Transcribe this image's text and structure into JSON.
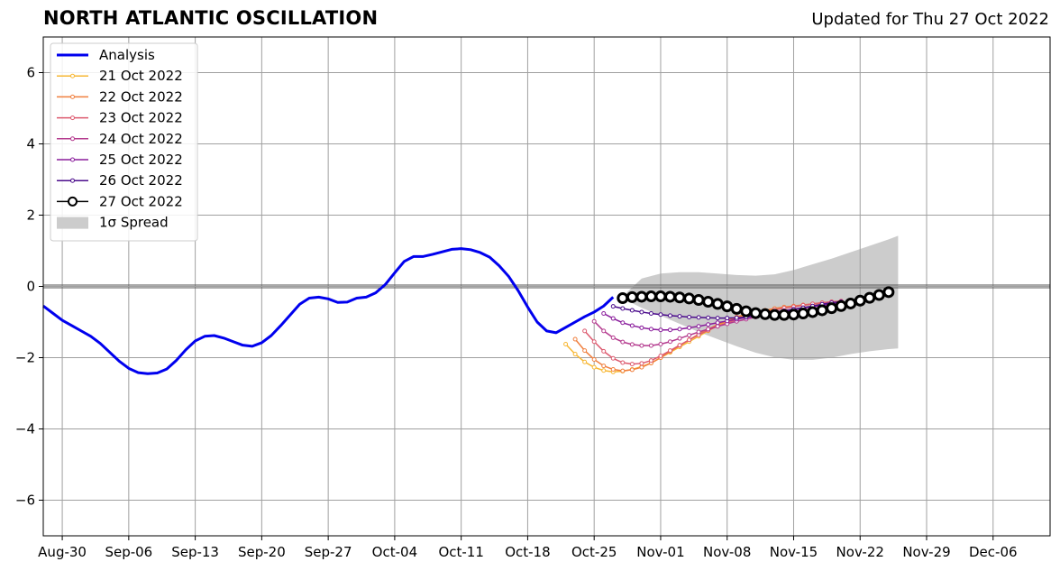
{
  "header": {
    "title": "NORTH ATLANTIC OSCILLATION",
    "updated": "Updated for Thu 27 Oct 2022"
  },
  "chart_data": {
    "type": "line",
    "title": "NORTH ATLANTIC OSCILLATION",
    "xlabel": "",
    "ylabel": "",
    "x_type": "date",
    "xlim": [
      "2022-08-28",
      "2022-12-12"
    ],
    "ylim": [
      -7,
      7
    ],
    "grid": true,
    "legend_position": "top-left",
    "x_tick_labels": [
      "Aug-30",
      "Sep-06",
      "Sep-13",
      "Sep-20",
      "Sep-27",
      "Oct-04",
      "Oct-11",
      "Oct-18",
      "Oct-25",
      "Nov-01",
      "Nov-08",
      "Nov-15",
      "Nov-22",
      "Nov-29",
      "Dec-06"
    ],
    "x_tick_dates": [
      "2022-08-30",
      "2022-09-06",
      "2022-09-13",
      "2022-09-20",
      "2022-09-27",
      "2022-10-04",
      "2022-10-11",
      "2022-10-18",
      "2022-10-25",
      "2022-11-01",
      "2022-11-08",
      "2022-11-15",
      "2022-11-22",
      "2022-11-29",
      "2022-12-06"
    ],
    "y_ticks": [
      6,
      4,
      2,
      0,
      -2,
      -4,
      -6
    ],
    "y_tick_labels": [
      "6",
      "4",
      "2",
      "0",
      "−2",
      "−4",
      "−6"
    ],
    "analysis": {
      "name": "Analysis",
      "color": "#0000ee",
      "x": [
        "2022-08-28",
        "2022-08-29",
        "2022-08-30",
        "2022-08-31",
        "2022-09-01",
        "2022-09-02",
        "2022-09-03",
        "2022-09-04",
        "2022-09-05",
        "2022-09-06",
        "2022-09-07",
        "2022-09-08",
        "2022-09-09",
        "2022-09-10",
        "2022-09-11",
        "2022-09-12",
        "2022-09-13",
        "2022-09-14",
        "2022-09-15",
        "2022-09-16",
        "2022-09-17",
        "2022-09-18",
        "2022-09-19",
        "2022-09-20",
        "2022-09-21",
        "2022-09-22",
        "2022-09-23",
        "2022-09-24",
        "2022-09-25",
        "2022-09-26",
        "2022-09-27",
        "2022-09-28",
        "2022-09-29",
        "2022-09-30",
        "2022-10-01",
        "2022-10-02",
        "2022-10-03",
        "2022-10-04",
        "2022-10-05",
        "2022-10-06",
        "2022-10-07",
        "2022-10-08",
        "2022-10-09",
        "2022-10-10",
        "2022-10-11",
        "2022-10-12",
        "2022-10-13",
        "2022-10-14",
        "2022-10-15",
        "2022-10-16",
        "2022-10-17",
        "2022-10-18",
        "2022-10-19",
        "2022-10-20",
        "2022-10-21",
        "2022-10-22",
        "2022-10-23",
        "2022-10-24",
        "2022-10-25",
        "2022-10-26",
        "2022-10-27"
      ],
      "y": [
        -0.55,
        -0.75,
        -0.95,
        -1.1,
        -1.25,
        -1.4,
        -1.6,
        -1.85,
        -2.1,
        -2.3,
        -2.42,
        -2.45,
        -2.43,
        -2.32,
        -2.08,
        -1.78,
        -1.53,
        -1.4,
        -1.38,
        -1.45,
        -1.55,
        -1.65,
        -1.68,
        -1.58,
        -1.38,
        -1.1,
        -0.8,
        -0.5,
        -0.33,
        -0.3,
        -0.35,
        -0.45,
        -0.44,
        -0.33,
        -0.3,
        -0.18,
        0.05,
        0.38,
        0.7,
        0.84,
        0.84,
        0.9,
        0.97,
        1.04,
        1.06,
        1.03,
        0.95,
        0.82,
        0.58,
        0.28,
        -0.12,
        -0.58,
        -1.0,
        -1.25,
        -1.3,
        -1.15,
        -1.0,
        -0.85,
        -0.72,
        -0.55,
        -0.3
      ]
    },
    "forecasts": [
      {
        "name": "21 Oct 2022",
        "color": "#f7b733",
        "start": "2022-10-22",
        "values": [
          -1.62,
          -1.9,
          -2.12,
          -2.27,
          -2.36,
          -2.4,
          -2.38,
          -2.33,
          -2.25,
          -2.15,
          -2.0,
          -1.85,
          -1.7,
          -1.55,
          -1.4,
          -1.25,
          -1.1,
          -0.98,
          -0.88,
          -0.8,
          -0.73,
          -0.68,
          -0.64,
          -0.6,
          -0.56,
          -0.53,
          -0.5,
          -0.47,
          -0.45,
          -0.42
        ]
      },
      {
        "name": "22 Oct 2022",
        "color": "#f07f3e",
        "start": "2022-10-23",
        "values": [
          -1.48,
          -1.8,
          -2.05,
          -2.23,
          -2.33,
          -2.37,
          -2.34,
          -2.27,
          -2.15,
          -2.0,
          -1.83,
          -1.66,
          -1.5,
          -1.34,
          -1.2,
          -1.07,
          -0.96,
          -0.86,
          -0.78,
          -0.72,
          -0.67,
          -0.62,
          -0.58,
          -0.55,
          -0.52,
          -0.49,
          -0.46,
          -0.44,
          -0.42
        ]
      },
      {
        "name": "23 Oct 2022",
        "color": "#dd5a6f",
        "start": "2022-10-24",
        "values": [
          -1.25,
          -1.55,
          -1.82,
          -2.02,
          -2.14,
          -2.18,
          -2.16,
          -2.08,
          -1.95,
          -1.8,
          -1.65,
          -1.5,
          -1.36,
          -1.23,
          -1.12,
          -1.02,
          -0.93,
          -0.85,
          -0.78,
          -0.72,
          -0.66,
          -0.61,
          -0.57,
          -0.53,
          -0.49,
          -0.46,
          -0.43,
          -0.41
        ]
      },
      {
        "name": "24 Oct 2022",
        "color": "#b43a8e",
        "start": "2022-10-25",
        "values": [
          -0.98,
          -1.25,
          -1.44,
          -1.56,
          -1.63,
          -1.66,
          -1.66,
          -1.62,
          -1.55,
          -1.46,
          -1.37,
          -1.28,
          -1.2,
          -1.12,
          -1.05,
          -0.98,
          -0.92,
          -0.86,
          -0.8,
          -0.75,
          -0.7,
          -0.65,
          -0.61,
          -0.57,
          -0.53,
          -0.5,
          -0.47
        ]
      },
      {
        "name": "25 Oct 2022",
        "color": "#8a1d9c",
        "start": "2022-10-26",
        "values": [
          -0.76,
          -0.9,
          -1.02,
          -1.1,
          -1.16,
          -1.2,
          -1.22,
          -1.22,
          -1.2,
          -1.16,
          -1.12,
          -1.07,
          -1.02,
          -0.97,
          -0.92,
          -0.87,
          -0.82,
          -0.77,
          -0.72,
          -0.68,
          -0.64,
          -0.6,
          -0.56,
          -0.53,
          -0.5,
          -0.47
        ]
      },
      {
        "name": "26 Oct 2022",
        "color": "#4b0c8c",
        "start": "2022-10-27",
        "values": [
          -0.56,
          -0.62,
          -0.67,
          -0.72,
          -0.76,
          -0.79,
          -0.82,
          -0.84,
          -0.86,
          -0.87,
          -0.88,
          -0.89,
          -0.89,
          -0.88,
          -0.86,
          -0.84,
          -0.8,
          -0.75,
          -0.7,
          -0.65,
          -0.6,
          -0.55,
          -0.5,
          -0.46,
          -0.43
        ]
      }
    ],
    "latest": {
      "name": "27 Oct 2022",
      "color": "#000000",
      "start": "2022-10-28",
      "values": [
        -0.33,
        -0.3,
        -0.29,
        -0.28,
        -0.28,
        -0.29,
        -0.31,
        -0.34,
        -0.38,
        -0.43,
        -0.49,
        -0.56,
        -0.63,
        -0.7,
        -0.75,
        -0.78,
        -0.8,
        -0.8,
        -0.79,
        -0.76,
        -0.72,
        -0.67,
        -0.61,
        -0.55,
        -0.48,
        -0.4,
        -0.32,
        -0.24,
        -0.16
      ]
    },
    "spread": {
      "name": "1σ Spread",
      "color": "#cccccc",
      "x": [
        "2022-10-28",
        "2022-10-30",
        "2022-11-01",
        "2022-11-03",
        "2022-11-05",
        "2022-11-07",
        "2022-11-09",
        "2022-11-11",
        "2022-11-13",
        "2022-11-15",
        "2022-11-17",
        "2022-11-19",
        "2022-11-21",
        "2022-11-23",
        "2022-11-25",
        "2022-11-26"
      ],
      "upper": [
        -0.28,
        0.22,
        0.36,
        0.4,
        0.4,
        0.36,
        0.32,
        0.3,
        0.34,
        0.46,
        0.62,
        0.78,
        0.96,
        1.14,
        1.32,
        1.42
      ],
      "lower": [
        -0.34,
        -0.6,
        -0.82,
        -1.05,
        -1.28,
        -1.48,
        -1.68,
        -1.86,
        -1.99,
        -2.06,
        -2.06,
        -2.0,
        -1.9,
        -1.82,
        -1.76,
        -1.74
      ]
    }
  }
}
